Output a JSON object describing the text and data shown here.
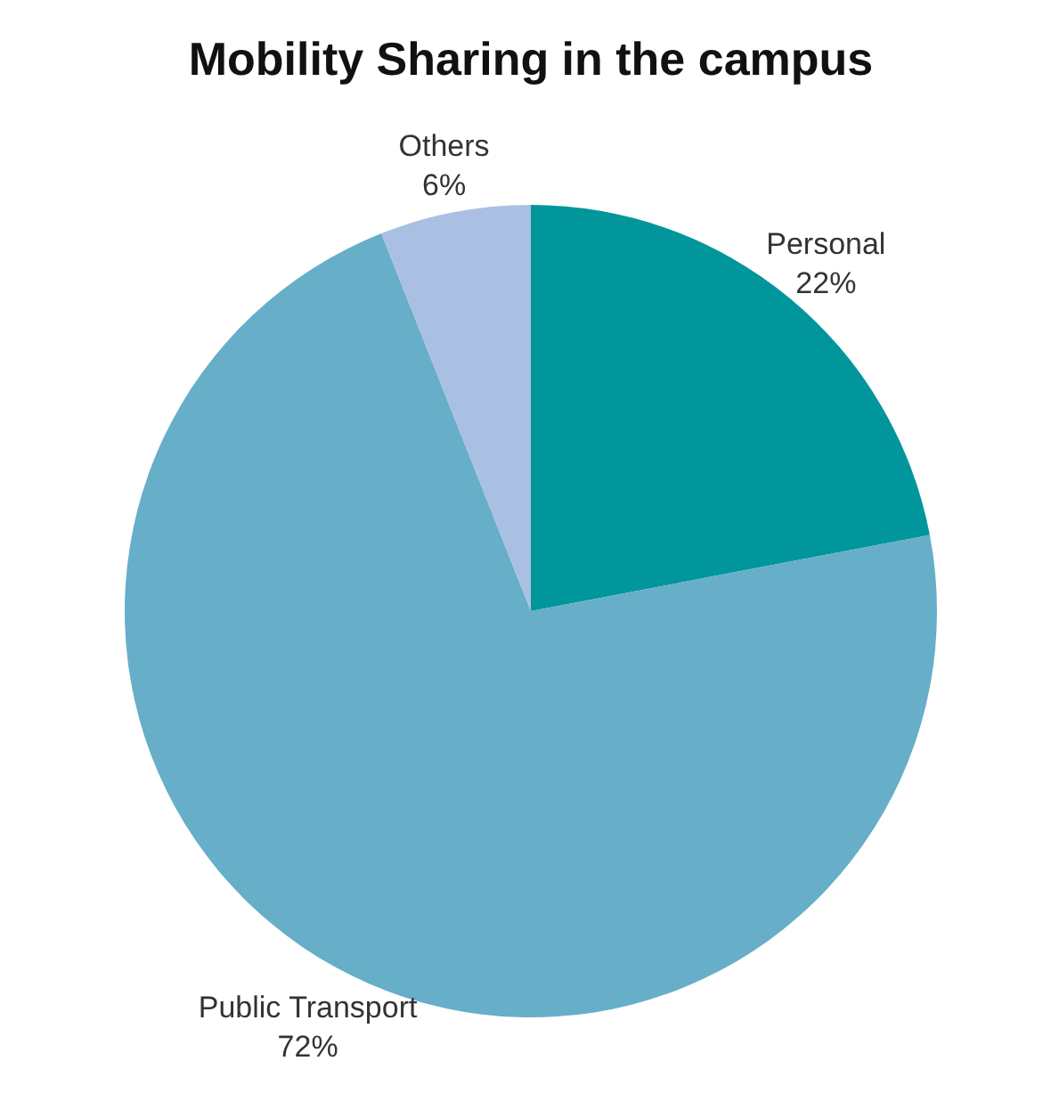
{
  "chart_data": {
    "type": "pie",
    "title": "Mobility Sharing in the campus",
    "categories": [
      "Personal",
      "Public Transport",
      "Others"
    ],
    "values": [
      22,
      72,
      6
    ],
    "colors": [
      "#00969b",
      "#67aec9",
      "#a9c0e3"
    ],
    "value_labels": [
      "22%",
      "72%",
      "6%"
    ]
  }
}
